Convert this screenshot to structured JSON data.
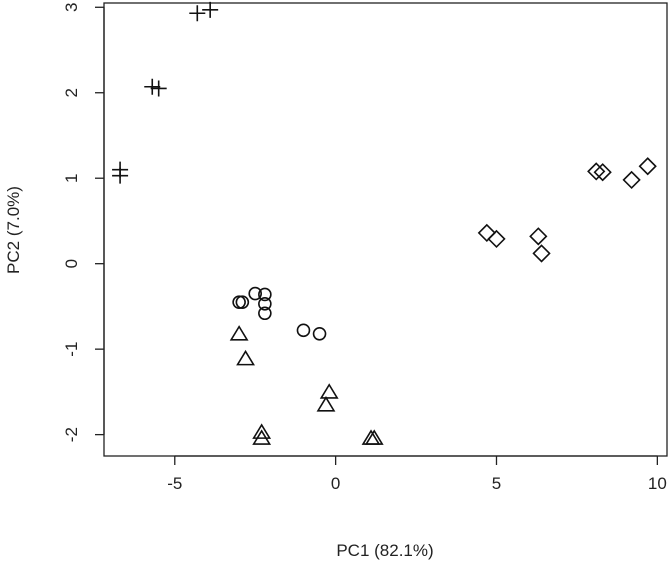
{
  "chart_data": {
    "type": "scatter",
    "title": "",
    "xlabel": "PC1 (82.1%)",
    "ylabel": "PC2 (7.0%)",
    "xlim": [
      -7.2,
      10.3
    ],
    "ylim": [
      -2.25,
      3.05
    ],
    "xticks": [
      "-5",
      "0",
      "5",
      "10"
    ],
    "yticks": [
      "-2",
      "-1",
      "0",
      "1",
      "2",
      "3"
    ],
    "grid": false,
    "legend": "none",
    "series": [
      {
        "marker": "plus",
        "points": [
          {
            "x": -4.3,
            "y": 2.93
          },
          {
            "x": -3.9,
            "y": 2.97
          },
          {
            "x": -5.7,
            "y": 2.07
          },
          {
            "x": -5.5,
            "y": 2.05
          },
          {
            "x": -6.7,
            "y": 1.1
          },
          {
            "x": -6.7,
            "y": 1.03
          }
        ]
      },
      {
        "marker": "diamond",
        "points": [
          {
            "x": 4.7,
            "y": 0.36
          },
          {
            "x": 5.0,
            "y": 0.29
          },
          {
            "x": 6.3,
            "y": 0.32
          },
          {
            "x": 6.4,
            "y": 0.12
          },
          {
            "x": 8.1,
            "y": 1.08
          },
          {
            "x": 8.3,
            "y": 1.07
          },
          {
            "x": 9.2,
            "y": 0.98
          },
          {
            "x": 9.7,
            "y": 1.14
          }
        ]
      },
      {
        "marker": "circle",
        "points": [
          {
            "x": -3.0,
            "y": -0.45
          },
          {
            "x": -2.9,
            "y": -0.45
          },
          {
            "x": -2.5,
            "y": -0.35
          },
          {
            "x": -2.2,
            "y": -0.36
          },
          {
            "x": -2.2,
            "y": -0.47
          },
          {
            "x": -2.2,
            "y": -0.58
          },
          {
            "x": -1.0,
            "y": -0.78
          },
          {
            "x": -0.5,
            "y": -0.82
          }
        ]
      },
      {
        "marker": "triangle",
        "points": [
          {
            "x": -3.0,
            "y": -0.83
          },
          {
            "x": -2.8,
            "y": -1.12
          },
          {
            "x": -2.3,
            "y": -1.98
          },
          {
            "x": -2.3,
            "y": -2.05
          },
          {
            "x": -0.2,
            "y": -1.51
          },
          {
            "x": -0.3,
            "y": -1.66
          },
          {
            "x": 1.1,
            "y": -2.05
          },
          {
            "x": 1.2,
            "y": -2.05
          }
        ]
      }
    ]
  }
}
